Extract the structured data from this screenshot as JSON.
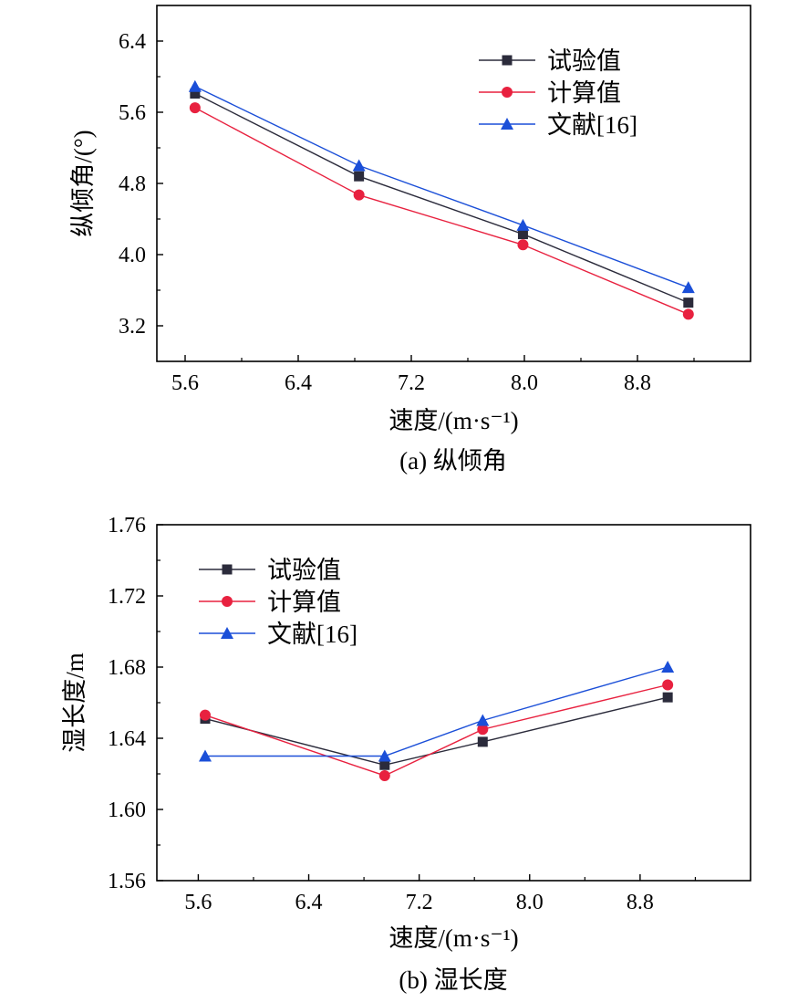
{
  "chart_data": [
    {
      "type": "line",
      "caption": "(a) 纵倾角",
      "xlabel": "速度/(m·s⁻¹)",
      "ylabel": "纵倾角/(°)",
      "xlim": [
        5.4,
        9.6
      ],
      "ylim": [
        2.8,
        6.8
      ],
      "xticks": [
        5.6,
        6.4,
        7.2,
        8.0,
        8.8
      ],
      "xtick_labels": [
        "5.6",
        "6.4",
        "7.2",
        "8.0",
        "8.8"
      ],
      "yticks": [
        3.2,
        4.0,
        4.8,
        5.6,
        6.4
      ],
      "ytick_labels": [
        "3.2",
        "4.0",
        "4.8",
        "5.6",
        "6.4"
      ],
      "legend_position": "top-right",
      "series": [
        {
          "name": "试验值",
          "color": "#2b2b3b",
          "marker": "square",
          "x": [
            5.67,
            6.83,
            7.99,
            9.16
          ],
          "y": [
            5.81,
            4.88,
            4.23,
            3.46
          ]
        },
        {
          "name": "计算值",
          "color": "#e8213f",
          "marker": "circle",
          "x": [
            5.67,
            6.83,
            7.99,
            9.16
          ],
          "y": [
            5.65,
            4.67,
            4.11,
            3.33
          ]
        },
        {
          "name": "文献[16]",
          "color": "#1b4fd8",
          "marker": "triangle",
          "x": [
            5.67,
            6.83,
            7.99,
            9.16
          ],
          "y": [
            5.89,
            5.0,
            4.33,
            3.63
          ]
        }
      ]
    },
    {
      "type": "line",
      "caption": "(b) 湿长度",
      "xlabel": "速度/(m·s⁻¹)",
      "ylabel": "湿长度/m",
      "xlim": [
        5.3,
        9.6
      ],
      "ylim": [
        1.56,
        1.76
      ],
      "xticks": [
        5.6,
        6.4,
        7.2,
        8.0,
        8.8
      ],
      "xtick_labels": [
        "5.6",
        "6.4",
        "7.2",
        "8.0",
        "8.8"
      ],
      "yticks": [
        1.56,
        1.6,
        1.64,
        1.68,
        1.72,
        1.76
      ],
      "ytick_labels": [
        "1.56",
        "1.60",
        "1.64",
        "1.68",
        "1.72",
        "1.76"
      ],
      "legend_position": "top-left",
      "series": [
        {
          "name": "试验值",
          "color": "#2b2b3b",
          "marker": "square",
          "x": [
            5.65,
            6.95,
            7.66,
            9.0
          ],
          "y": [
            1.651,
            1.625,
            1.638,
            1.663
          ]
        },
        {
          "name": "计算值",
          "color": "#e8213f",
          "marker": "circle",
          "x": [
            5.65,
            6.95,
            7.66,
            9.0
          ],
          "y": [
            1.653,
            1.619,
            1.645,
            1.67
          ]
        },
        {
          "name": "文献[16]",
          "color": "#1b4fd8",
          "marker": "triangle",
          "x": [
            5.65,
            6.95,
            7.66,
            9.0
          ],
          "y": [
            1.63,
            1.63,
            1.65,
            1.68
          ]
        }
      ]
    }
  ]
}
